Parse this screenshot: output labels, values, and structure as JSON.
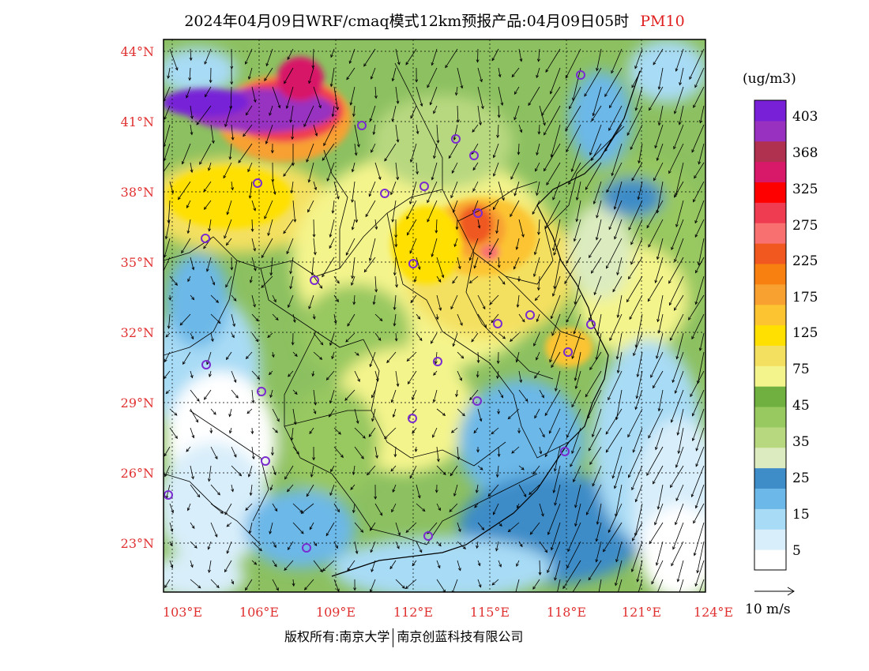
{
  "title": {
    "main": "2024年04月09日WRF/cmaq模式12km预报产品:04月09日05时",
    "variable": "PM10",
    "variable_color": "#e02020"
  },
  "map": {
    "lat_labels": [
      "44°N",
      "41°N",
      "38°N",
      "35°N",
      "32°N",
      "29°N",
      "26°N",
      "23°N"
    ],
    "lon_labels": [
      "103°E",
      "106°E",
      "109°E",
      "112°E",
      "115°E",
      "118°E",
      "121°E",
      "124°E"
    ],
    "label_color": "#e03030"
  },
  "colorbar": {
    "unit": "(ug/m3)",
    "colors": [
      "#ffffff",
      "#d8eefa",
      "#a8dbf5",
      "#6cb8e8",
      "#3e8cc8",
      "#dcecc0",
      "#b8d880",
      "#98c860",
      "#70b040",
      "#f4f48c",
      "#f4e060",
      "#ffe000",
      "#fcc430",
      "#f8a030",
      "#f88010",
      "#f05820",
      "#f87070",
      "#f03c50",
      "#ff0000",
      "#d81868",
      "#b03050",
      "#9830c0",
      "#7820d8"
    ],
    "labels": [
      "5",
      "15",
      "25",
      "35",
      "45",
      "75",
      "125",
      "175",
      "225",
      "275",
      "325",
      "368",
      "403"
    ]
  },
  "wind": {
    "reference_label": "10 m/s"
  },
  "copyright": {
    "left": "版权所有:南京大学",
    "right": "南京创蓝科技有限公司"
  }
}
